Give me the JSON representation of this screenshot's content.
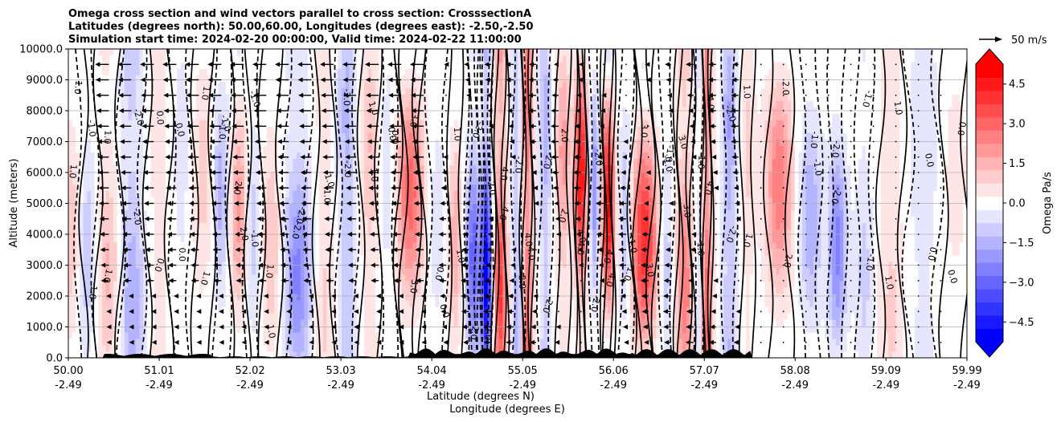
{
  "chart_data": {
    "type": "heatmap",
    "title_lines": [
      "Omega cross section and wind vectors parallel to cross section: CrosssectionA",
      "Latitudes (degrees north): 50.00,60.00, Longitudes (degrees east): -2.50,-2.50",
      "Simulation start time: 2024-02-20 00:00:00, Valid time: 2024-02-22 11:00:00"
    ],
    "ylabel": "Altitude (meters)",
    "xlabel_lines": [
      "Latitude (degrees N)",
      "Longitude (degrees E)"
    ],
    "ylim": [
      0,
      10000
    ],
    "xlim": [
      50.0,
      59.99
    ],
    "y_ticks": [
      "0.0",
      "1000.0",
      "2000.0",
      "3000.0",
      "4000.0",
      "5000.0",
      "6000.0",
      "7000.0",
      "8000.0",
      "9000.0",
      "10000.0"
    ],
    "x_ticks": [
      {
        "lat": "50.00",
        "lon": "-2.49"
      },
      {
        "lat": "51.01",
        "lon": "-2.49"
      },
      {
        "lat": "52.02",
        "lon": "-2.49"
      },
      {
        "lat": "53.03",
        "lon": "-2.49"
      },
      {
        "lat": "54.04",
        "lon": "-2.49"
      },
      {
        "lat": "55.05",
        "lon": "-2.49"
      },
      {
        "lat": "56.06",
        "lon": "-2.49"
      },
      {
        "lat": "57.07",
        "lon": "-2.49"
      },
      {
        "lat": "58.08",
        "lon": "-2.49"
      },
      {
        "lat": "59.09",
        "lon": "-2.49"
      },
      {
        "lat": "59.99",
        "lon": "-2.49"
      }
    ],
    "colorbar": {
      "label": "Omega Pa/s",
      "range": [
        -5.25,
        5.25
      ],
      "extend": "both",
      "tick_values": [
        4.5,
        3.0,
        1.5,
        0.0,
        -1.5,
        -3.0,
        -4.5
      ],
      "tick_labels": [
        "4.5",
        "3.0",
        "1.5",
        "0.0",
        "−1.5",
        "−3.0",
        "−4.5"
      ]
    },
    "quiver_key": {
      "label": "50 m/s",
      "speed": 50
    },
    "contour_labels": [
      "0.0",
      "1.0",
      "-1.0",
      "2.0",
      "-2.0",
      "3.0",
      "4.0",
      "5.0"
    ],
    "omega_bands": [
      {
        "lat": 50.05,
        "w": 0.15,
        "v": 1.2
      },
      {
        "lat": 50.2,
        "w": 0.12,
        "v": -1.5
      },
      {
        "lat": 50.45,
        "w": 0.15,
        "v": 1.5
      },
      {
        "lat": 50.7,
        "w": 0.15,
        "v": -2.2
      },
      {
        "lat": 51.0,
        "w": 0.15,
        "v": 0.8
      },
      {
        "lat": 51.25,
        "w": 0.12,
        "v": -0.6
      },
      {
        "lat": 51.5,
        "w": 0.12,
        "v": 1.0
      },
      {
        "lat": 51.7,
        "w": 0.1,
        "v": -1.5
      },
      {
        "lat": 51.9,
        "w": 0.12,
        "v": 1.8
      },
      {
        "lat": 52.05,
        "w": 0.1,
        "v": -1.2
      },
      {
        "lat": 52.25,
        "w": 0.12,
        "v": 1.2
      },
      {
        "lat": 52.55,
        "w": 0.15,
        "v": -2.5
      },
      {
        "lat": 52.85,
        "w": 0.12,
        "v": 1.2
      },
      {
        "lat": 53.1,
        "w": 0.12,
        "v": -2.2
      },
      {
        "lat": 53.35,
        "w": 0.12,
        "v": 1.5
      },
      {
        "lat": 53.55,
        "w": 0.1,
        "v": -0.8
      },
      {
        "lat": 53.8,
        "w": 0.15,
        "v": 2.8
      },
      {
        "lat": 54.1,
        "w": 0.12,
        "v": -0.5
      },
      {
        "lat": 54.3,
        "w": 0.08,
        "v": 1.5
      },
      {
        "lat": 54.5,
        "w": 0.08,
        "v": -3.0
      },
      {
        "lat": 54.65,
        "w": 0.06,
        "v": -5.5
      },
      {
        "lat": 54.8,
        "w": 0.08,
        "v": 4.5
      },
      {
        "lat": 55.0,
        "w": 0.07,
        "v": -2.5
      },
      {
        "lat": 55.1,
        "w": 0.07,
        "v": 5.0
      },
      {
        "lat": 55.3,
        "w": 0.08,
        "v": -2.0
      },
      {
        "lat": 55.5,
        "w": 0.08,
        "v": 2.2
      },
      {
        "lat": 55.7,
        "w": 0.07,
        "v": 4.8
      },
      {
        "lat": 55.85,
        "w": 0.06,
        "v": -2.0
      },
      {
        "lat": 56.0,
        "w": 0.07,
        "v": 4.5
      },
      {
        "lat": 56.2,
        "w": 0.08,
        "v": -1.5
      },
      {
        "lat": 56.4,
        "w": 0.15,
        "v": 3.8
      },
      {
        "lat": 56.65,
        "w": 0.08,
        "v": -1.2
      },
      {
        "lat": 56.85,
        "w": 0.1,
        "v": 3.0
      },
      {
        "lat": 57.0,
        "w": 0.05,
        "v": -1.5
      },
      {
        "lat": 57.1,
        "w": 0.06,
        "v": 4.5
      },
      {
        "lat": 57.35,
        "w": 0.08,
        "v": -2.5
      },
      {
        "lat": 57.55,
        "w": 0.08,
        "v": 1.0
      },
      {
        "lat": 57.9,
        "w": 0.15,
        "v": 2.5
      },
      {
        "lat": 58.25,
        "w": 0.12,
        "v": -1.5
      },
      {
        "lat": 58.55,
        "w": 0.1,
        "v": -2.2
      },
      {
        "lat": 58.85,
        "w": 0.1,
        "v": -1.0
      },
      {
        "lat": 59.15,
        "w": 0.15,
        "v": 1.2
      },
      {
        "lat": 59.5,
        "w": 0.2,
        "v": -0.8
      },
      {
        "lat": 59.85,
        "w": 0.15,
        "v": 0.5
      }
    ]
  },
  "colors": {
    "positive": "#ff0000",
    "negative": "#0000ff",
    "neutral": "#ffffff",
    "contour": "#000000",
    "grid": "#b0b0b0"
  }
}
